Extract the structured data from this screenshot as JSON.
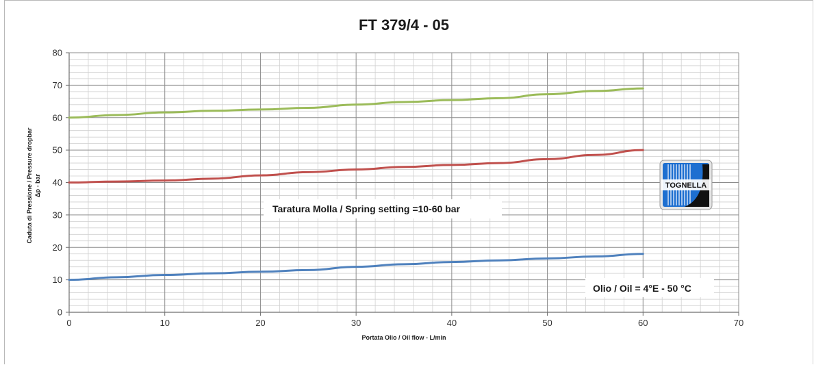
{
  "chart_data": {
    "type": "line",
    "title": "FT 379/4 - 05",
    "xlabel": "Portata Olio  /  Oil flow - L/min",
    "ylabel_line1": "Caduta di Pressione / Pressure dropbar",
    "ylabel_line2": "Δp - bar",
    "xlim": [
      0,
      70
    ],
    "ylim": [
      0,
      80
    ],
    "x_ticks": [
      "0",
      "10",
      "20",
      "30",
      "40",
      "50",
      "60",
      "70"
    ],
    "y_ticks": [
      "0",
      "10",
      "20",
      "30",
      "40",
      "50",
      "60",
      "70",
      "80"
    ],
    "grid": true,
    "legend": "none",
    "series": [
      {
        "color": "#9bbb59",
        "points": [
          [
            0,
            60
          ],
          [
            5,
            60.8
          ],
          [
            10,
            61.6
          ],
          [
            15,
            62.1
          ],
          [
            20,
            62.5
          ],
          [
            25,
            63
          ],
          [
            30,
            64
          ],
          [
            35,
            64.8
          ],
          [
            40,
            65.4
          ],
          [
            45,
            66
          ],
          [
            50,
            67.2
          ],
          [
            55,
            68.2
          ],
          [
            60,
            69
          ]
        ]
      },
      {
        "color": "#c0504d",
        "points": [
          [
            0,
            40
          ],
          [
            5,
            40.3
          ],
          [
            10,
            40.6
          ],
          [
            15,
            41.2
          ],
          [
            20,
            42.2
          ],
          [
            25,
            43.2
          ],
          [
            30,
            44
          ],
          [
            35,
            44.8
          ],
          [
            40,
            45.4
          ],
          [
            45,
            46
          ],
          [
            50,
            47.2
          ],
          [
            55,
            48.5
          ],
          [
            60,
            50
          ]
        ]
      },
      {
        "color": "#4f81bd",
        "points": [
          [
            0,
            10
          ],
          [
            5,
            10.8
          ],
          [
            10,
            11.5
          ],
          [
            15,
            12
          ],
          [
            20,
            12.5
          ],
          [
            25,
            13
          ],
          [
            30,
            14
          ],
          [
            35,
            14.8
          ],
          [
            40,
            15.5
          ],
          [
            45,
            16
          ],
          [
            50,
            16.6
          ],
          [
            55,
            17.2
          ],
          [
            60,
            18
          ]
        ]
      }
    ],
    "annotations": [
      {
        "text": "Taratura Molla / Spring setting =10-60 bar"
      },
      {
        "text": "Olio / Oil = 4°E - 50 °C"
      }
    ]
  },
  "logo": {
    "text": "TOGNELLA"
  }
}
